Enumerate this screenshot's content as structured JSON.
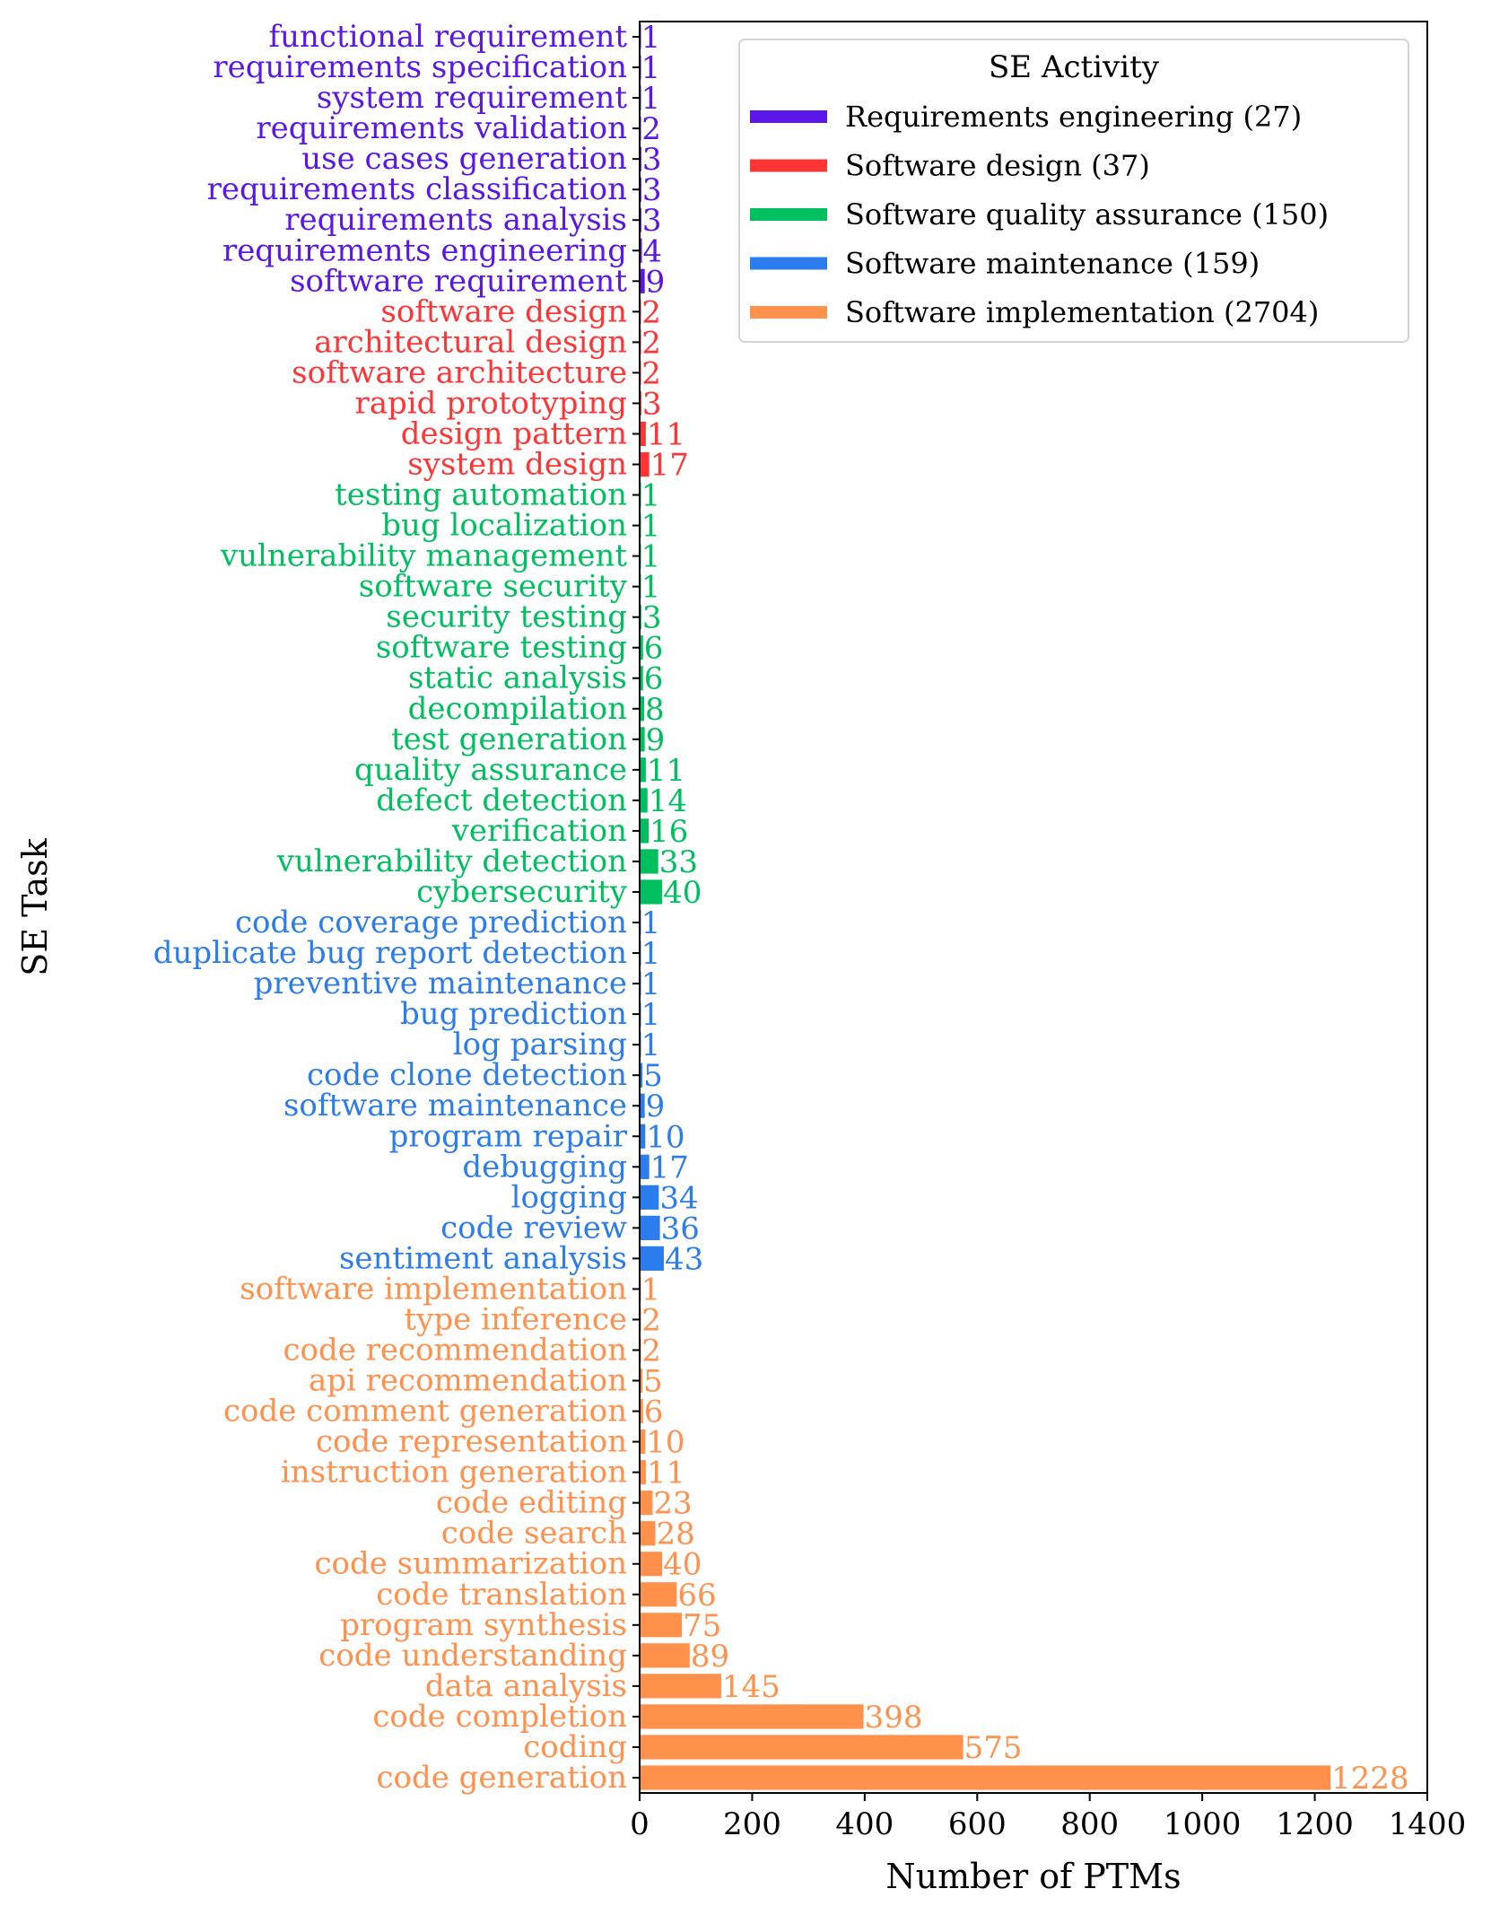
{
  "chart_data": {
    "type": "bar",
    "orientation": "horizontal",
    "xlabel": "Number of PTMs",
    "ylabel": "SE Task",
    "xlim": [
      0,
      1400
    ],
    "xticks": [
      "0",
      "200",
      "400",
      "600",
      "800",
      "1000",
      "1200",
      "1400"
    ],
    "legend": {
      "title": "SE Activity",
      "placement": "top-right",
      "entries": [
        {
          "label": "Requirements engineering (27)",
          "color": "#5a17e8"
        },
        {
          "label": "Software design (37)",
          "color": "#ff3535"
        },
        {
          "label": "Software quality assurance (150)",
          "color": "#00bf5f"
        },
        {
          "label": "Software maintenance (159)",
          "color": "#2b7cec"
        },
        {
          "label": "Software implementation (2704)",
          "color": "#ff914d"
        }
      ]
    },
    "categories": [
      {
        "task": "functional requirement",
        "value": 1,
        "group": 0
      },
      {
        "task": "requirements specification",
        "value": 1,
        "group": 0
      },
      {
        "task": "system requirement",
        "value": 1,
        "group": 0
      },
      {
        "task": "requirements validation",
        "value": 2,
        "group": 0
      },
      {
        "task": "use cases generation",
        "value": 3,
        "group": 0
      },
      {
        "task": "requirements classification",
        "value": 3,
        "group": 0
      },
      {
        "task": "requirements analysis",
        "value": 3,
        "group": 0
      },
      {
        "task": "requirements engineering",
        "value": 4,
        "group": 0
      },
      {
        "task": "software requirement",
        "value": 9,
        "group": 0
      },
      {
        "task": "software design",
        "value": 2,
        "group": 1
      },
      {
        "task": "architectural design",
        "value": 2,
        "group": 1
      },
      {
        "task": "software architecture",
        "value": 2,
        "group": 1
      },
      {
        "task": "rapid prototyping",
        "value": 3,
        "group": 1
      },
      {
        "task": "design pattern",
        "value": 11,
        "group": 1
      },
      {
        "task": "system design",
        "value": 17,
        "group": 1
      },
      {
        "task": "testing automation",
        "value": 1,
        "group": 2
      },
      {
        "task": "bug localization",
        "value": 1,
        "group": 2
      },
      {
        "task": "vulnerability management",
        "value": 1,
        "group": 2
      },
      {
        "task": "software security",
        "value": 1,
        "group": 2
      },
      {
        "task": "security testing",
        "value": 3,
        "group": 2
      },
      {
        "task": "software testing",
        "value": 6,
        "group": 2
      },
      {
        "task": "static analysis",
        "value": 6,
        "group": 2
      },
      {
        "task": "decompilation",
        "value": 8,
        "group": 2
      },
      {
        "task": "test generation",
        "value": 9,
        "group": 2
      },
      {
        "task": "quality assurance",
        "value": 11,
        "group": 2
      },
      {
        "task": "defect detection",
        "value": 14,
        "group": 2
      },
      {
        "task": "verification",
        "value": 16,
        "group": 2
      },
      {
        "task": "vulnerability detection",
        "value": 33,
        "group": 2
      },
      {
        "task": "cybersecurity",
        "value": 40,
        "group": 2
      },
      {
        "task": "code coverage prediction",
        "value": 1,
        "group": 3
      },
      {
        "task": "duplicate bug report detection",
        "value": 1,
        "group": 3
      },
      {
        "task": "preventive maintenance",
        "value": 1,
        "group": 3
      },
      {
        "task": "bug prediction",
        "value": 1,
        "group": 3
      },
      {
        "task": "log parsing",
        "value": 1,
        "group": 3
      },
      {
        "task": "code clone detection",
        "value": 5,
        "group": 3
      },
      {
        "task": "software maintenance",
        "value": 9,
        "group": 3
      },
      {
        "task": "program repair",
        "value": 10,
        "group": 3
      },
      {
        "task": "debugging",
        "value": 17,
        "group": 3
      },
      {
        "task": "logging",
        "value": 34,
        "group": 3
      },
      {
        "task": "code review",
        "value": 36,
        "group": 3
      },
      {
        "task": "sentiment analysis",
        "value": 43,
        "group": 3
      },
      {
        "task": "software implementation",
        "value": 1,
        "group": 4
      },
      {
        "task": "type inference",
        "value": 2,
        "group": 4
      },
      {
        "task": "code recommendation",
        "value": 2,
        "group": 4
      },
      {
        "task": "api recommendation",
        "value": 5,
        "group": 4
      },
      {
        "task": "code comment generation",
        "value": 6,
        "group": 4
      },
      {
        "task": "code representation",
        "value": 10,
        "group": 4
      },
      {
        "task": "instruction generation",
        "value": 11,
        "group": 4
      },
      {
        "task": "code editing",
        "value": 23,
        "group": 4
      },
      {
        "task": "code search",
        "value": 28,
        "group": 4
      },
      {
        "task": "code summarization",
        "value": 40,
        "group": 4
      },
      {
        "task": "code translation",
        "value": 66,
        "group": 4
      },
      {
        "task": "program synthesis",
        "value": 75,
        "group": 4
      },
      {
        "task": "code understanding",
        "value": 89,
        "group": 4
      },
      {
        "task": "data analysis",
        "value": 145,
        "group": 4
      },
      {
        "task": "code completion",
        "value": 398,
        "group": 4
      },
      {
        "task": "coding",
        "value": 575,
        "group": 4
      },
      {
        "task": "code generation",
        "value": 1228,
        "group": 4
      }
    ]
  }
}
